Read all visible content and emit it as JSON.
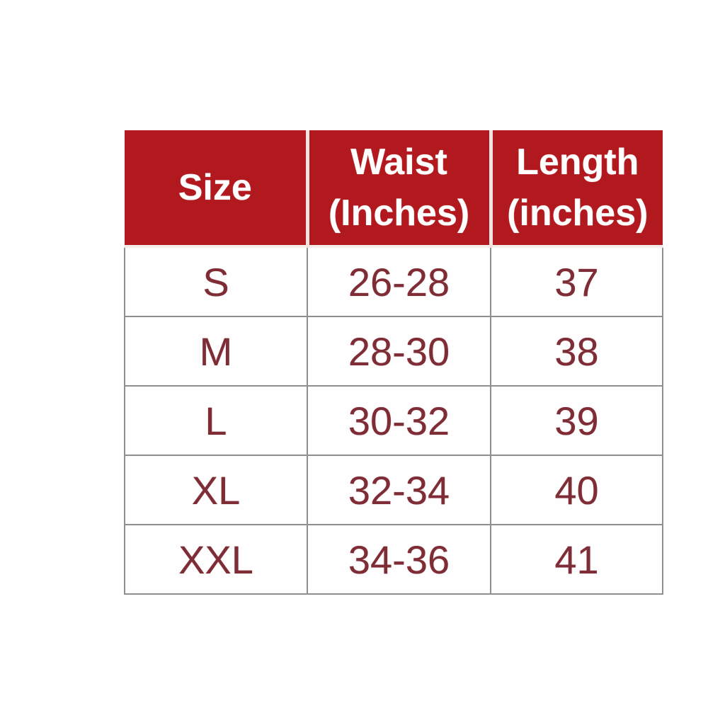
{
  "page": {
    "background_color": "#ffffff"
  },
  "size_chart": {
    "header": {
      "background_color": "#b2191e",
      "text_color": "#ffffff",
      "columns": [
        {
          "label": "Size",
          "line1": "Size",
          "line2": ""
        },
        {
          "label": "Waist (Inches)",
          "line1": "Waist",
          "line2": "(Inches)"
        },
        {
          "label": "Length (inches)",
          "line1": "Length",
          "line2": "(inches)"
        }
      ]
    },
    "body_text_color": "#7e2c35",
    "grid_color": "#8f8f8f",
    "rows": [
      {
        "size": "S",
        "waist": "26-28",
        "length": "37"
      },
      {
        "size": "M",
        "waist": "28-30",
        "length": "38"
      },
      {
        "size": "L",
        "waist": "30-32",
        "length": "39"
      },
      {
        "size": "XL",
        "waist": "32-34",
        "length": "40"
      },
      {
        "size": "XXL",
        "waist": "34-36",
        "length": "41"
      }
    ]
  },
  "chart_data": {
    "type": "table",
    "columns": [
      "Size",
      "Waist (Inches)",
      "Length (inches)"
    ],
    "rows": [
      [
        "S",
        "26-28",
        "37"
      ],
      [
        "M",
        "28-30",
        "38"
      ],
      [
        "L",
        "30-32",
        "39"
      ],
      [
        "XL",
        "32-34",
        "40"
      ],
      [
        "XXL",
        "34-36",
        "41"
      ]
    ],
    "title": "",
    "layout": {
      "header_style": "dark-red-filled",
      "grid": "on"
    }
  }
}
